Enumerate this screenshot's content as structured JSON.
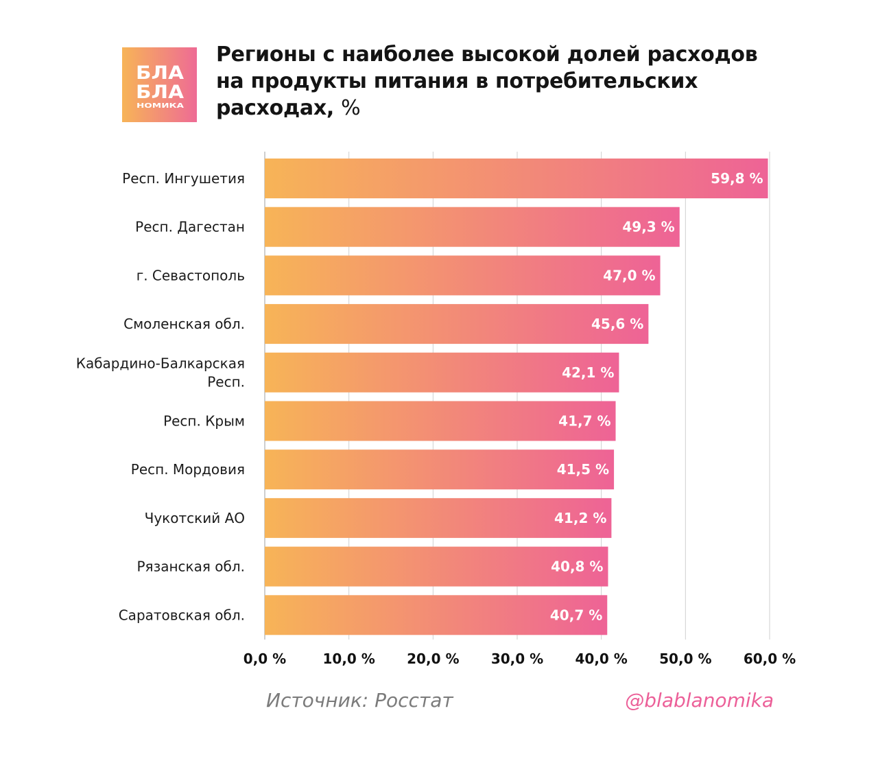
{
  "logo": {
    "line1": "БЛА",
    "line2": "БЛА",
    "line3": "НОМИКА"
  },
  "header": {
    "title_line1": "Регионы с наиболее высокой долей расходов",
    "title_line2": "на продукты питания в потребительских",
    "title_line3": "расходах,",
    "title_unit": "%"
  },
  "colors": {
    "bar_start": "#f7b457",
    "bar_end": "#ee6396",
    "gridline": "#cfcfcf",
    "handle": "#ec5f98"
  },
  "chart_data": {
    "type": "bar",
    "orientation": "horizontal",
    "categories": [
      [
        "Респ. Ингушетия"
      ],
      [
        "Респ. Дагестан"
      ],
      [
        "г. Севастополь"
      ],
      [
        "Смоленская обл."
      ],
      [
        "Кабардино-Балкарская",
        "Респ."
      ],
      [
        "Респ. Крым"
      ],
      [
        "Респ. Мордовия"
      ],
      [
        "Чукотский АО"
      ],
      [
        "Рязанская обл."
      ],
      [
        "Саратовская обл."
      ]
    ],
    "values": [
      59.8,
      49.3,
      47.0,
      45.6,
      42.1,
      41.7,
      41.5,
      41.2,
      40.8,
      40.7
    ],
    "value_labels": [
      "59,8 %",
      "49,3 %",
      "47,0 %",
      "45,6 %",
      "42,1 %",
      "41,7 %",
      "41,5 %",
      "41,2 %",
      "40,8 %",
      "40,7 %"
    ],
    "xlim": [
      0,
      60
    ],
    "xticks": [
      0,
      10,
      20,
      30,
      40,
      50,
      60
    ],
    "xtick_labels": [
      "0,0 %",
      "10,0 %",
      "20,0 %",
      "30,0 %",
      "40,0 %",
      "50,0 %",
      "60,0 %"
    ],
    "grid": true
  },
  "footer": {
    "source": "Источник: Росстат",
    "handle": "@blablanomika"
  }
}
